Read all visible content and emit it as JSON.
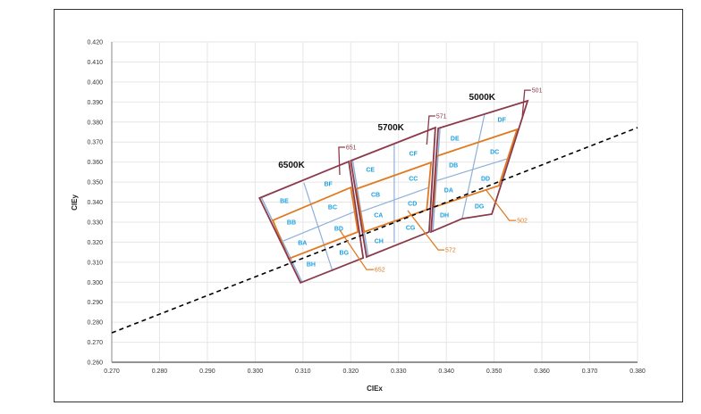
{
  "chart_data": {
    "type": "scatter",
    "title": "",
    "xlabel": "CIEx",
    "ylabel": "CIEy",
    "xlim": [
      0.27,
      0.38
    ],
    "ylim": [
      0.26,
      0.42
    ],
    "xticks": [
      "0.270",
      "0.280",
      "0.290",
      "0.300",
      "0.310",
      "0.320",
      "0.330",
      "0.340",
      "0.350",
      "0.360",
      "0.370",
      "0.380"
    ],
    "yticks": [
      "0.260",
      "0.270",
      "0.280",
      "0.290",
      "0.300",
      "0.310",
      "0.320",
      "0.330",
      "0.340",
      "0.350",
      "0.360",
      "0.370",
      "0.380",
      "0.390",
      "0.400",
      "0.410",
      "0.420"
    ],
    "grid": true,
    "colors": {
      "outer": "#8b3a4a",
      "inner": "#e07b22",
      "divider": "#8fb0d8",
      "zone_label": "#1aa0e0",
      "locus": "#000000"
    },
    "blackbody_locus": [
      [
        0.27,
        0.2747
      ],
      [
        0.38,
        0.3772
      ]
    ],
    "groups": [
      {
        "name": "6500K",
        "label_at": [
          0.3076,
          0.3589
        ],
        "outer": [
          [
            0.3009,
            0.342
          ],
          [
            0.3196,
            0.3603
          ],
          [
            0.3226,
            0.3121
          ],
          [
            0.3095,
            0.2997
          ]
        ],
        "inner": [
          [
            0.3037,
            0.3309
          ],
          [
            0.32,
            0.3473
          ],
          [
            0.3215,
            0.3251
          ],
          [
            0.307,
            0.3117
          ]
        ],
        "dividers": [
          [
            [
              0.3102,
              0.3496
            ],
            [
              0.3162,
              0.3055
            ]
          ],
          [
            [
              0.3059,
              0.3206
            ],
            [
              0.3209,
              0.3353
            ]
          ]
        ],
        "zones": [
          {
            "name": "BE",
            "at": [
              0.3061,
              0.3407
            ]
          },
          {
            "name": "BF",
            "at": [
              0.3153,
              0.3491
            ]
          },
          {
            "name": "BB",
            "at": [
              0.3076,
              0.33
            ]
          },
          {
            "name": "BC",
            "at": [
              0.3162,
              0.3375
            ]
          },
          {
            "name": "BA",
            "at": [
              0.3099,
              0.3197
            ]
          },
          {
            "name": "BD",
            "at": [
              0.3175,
              0.3268
            ]
          },
          {
            "name": "BH",
            "at": [
              0.3117,
              0.309
            ]
          },
          {
            "name": "BG",
            "at": [
              0.3186,
              0.3148
            ]
          }
        ]
      },
      {
        "name": "5700K",
        "label_at": [
          0.3284,
          0.3776
        ],
        "outer": [
          [
            0.32,
            0.3607
          ],
          [
            0.3377,
            0.3772
          ],
          [
            0.3364,
            0.3251
          ],
          [
            0.3233,
            0.3126
          ]
        ],
        "inner": [
          [
            0.3211,
            0.3465
          ],
          [
            0.3368,
            0.3598
          ],
          [
            0.3359,
            0.3362
          ],
          [
            0.3228,
            0.3251
          ]
        ],
        "dividers": [
          [
            [
              0.3291,
              0.3687
            ],
            [
              0.3291,
              0.3197
            ]
          ],
          [
            [
              0.3218,
              0.3349
            ],
            [
              0.3364,
              0.3473
            ]
          ]
        ],
        "zones": [
          {
            "name": "CE",
            "at": [
              0.3241,
              0.3562
            ]
          },
          {
            "name": "CF",
            "at": [
              0.3331,
              0.3643
            ]
          },
          {
            "name": "CB",
            "at": [
              0.3252,
              0.3438
            ]
          },
          {
            "name": "CC",
            "at": [
              0.3331,
              0.3518
            ]
          },
          {
            "name": "CA",
            "at": [
              0.3258,
              0.3335
            ]
          },
          {
            "name": "CD",
            "at": [
              0.3329,
              0.3393
            ]
          },
          {
            "name": "CH",
            "at": [
              0.3259,
              0.3206
            ]
          },
          {
            "name": "CG",
            "at": [
              0.3325,
              0.3273
            ]
          }
        ]
      },
      {
        "name": "5000K",
        "label_at": [
          0.3475,
          0.3928
        ],
        "outer": [
          [
            0.3383,
            0.3768
          ],
          [
            0.357,
            0.3906
          ],
          [
            0.3495,
            0.334
          ],
          [
            0.3433,
            0.3317
          ],
          [
            0.3368,
            0.3251
          ]
        ],
        "inner": [
          [
            0.3379,
            0.3629
          ],
          [
            0.3548,
            0.3763
          ],
          [
            0.351,
            0.3482
          ],
          [
            0.3374,
            0.3375
          ]
        ],
        "dividers": [
          [
            [
              0.348,
              0.3839
            ],
            [
              0.3433,
              0.3317
            ]
          ],
          [
            [
              0.3377,
              0.3505
            ],
            [
              0.3527,
              0.3616
            ]
          ]
        ],
        "zones": [
          {
            "name": "DE",
            "at": [
              0.3418,
              0.3718
            ]
          },
          {
            "name": "DF",
            "at": [
              0.3516,
              0.3812
            ]
          },
          {
            "name": "DB",
            "at": [
              0.3415,
              0.3585
            ]
          },
          {
            "name": "DC",
            "at": [
              0.3501,
              0.3652
            ]
          },
          {
            "name": "DA",
            "at": [
              0.3405,
              0.346
            ]
          },
          {
            "name": "DD",
            "at": [
              0.3482,
              0.3518
            ]
          },
          {
            "name": "DH",
            "at": [
              0.3396,
              0.3335
            ]
          },
          {
            "name": "DG",
            "at": [
              0.3469,
              0.338
            ]
          }
        ]
      }
    ],
    "callouts": [
      {
        "text": "651",
        "color": "#8b3a4a",
        "path": [
          [
            0.3177,
            0.3536
          ],
          [
            0.3175,
            0.3674
          ],
          [
            0.3188,
            0.3674
          ]
        ]
      },
      {
        "text": "571",
        "color": "#8b3a4a",
        "path": [
          [
            0.3359,
            0.3687
          ],
          [
            0.3364,
            0.383
          ],
          [
            0.3377,
            0.383
          ]
        ]
      },
      {
        "text": "501",
        "color": "#8b3a4a",
        "path": [
          [
            0.3559,
            0.383
          ],
          [
            0.3564,
            0.3959
          ],
          [
            0.3577,
            0.3959
          ]
        ]
      },
      {
        "text": "652",
        "color": "#e07b22",
        "path": [
          [
            0.3177,
            0.326
          ],
          [
            0.3233,
            0.3063
          ],
          [
            0.3248,
            0.3063
          ]
        ]
      },
      {
        "text": "572",
        "color": "#e07b22",
        "path": [
          [
            0.3319,
            0.3358
          ],
          [
            0.3383,
            0.3161
          ],
          [
            0.3396,
            0.3161
          ]
        ]
      },
      {
        "text": "502",
        "color": "#e07b22",
        "path": [
          [
            0.3482,
            0.3464
          ],
          [
            0.3532,
            0.3308
          ],
          [
            0.3546,
            0.3308
          ]
        ]
      }
    ]
  }
}
